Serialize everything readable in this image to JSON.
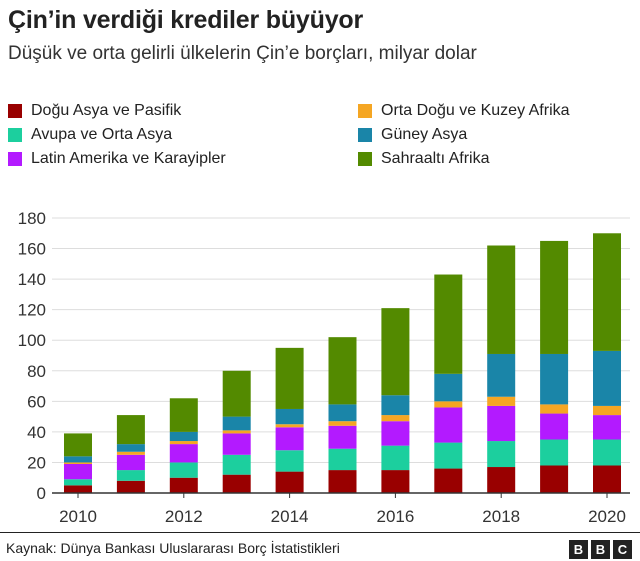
{
  "title": "Çin’in verdiği krediler büyüyor",
  "subtitle": "Düşük ve orta gelirli ülkelerin Çin’e borçları, milyar dolar",
  "source": "Kaynak: Dünya Bankası Uluslararası Borç İstatistikleri",
  "logo": [
    "B",
    "B",
    "C"
  ],
  "chart_data": {
    "type": "bar",
    "stacked": true,
    "categories": [
      "2010",
      "2011",
      "2012",
      "2013",
      "2014",
      "2015",
      "2016",
      "2017",
      "2018",
      "2019",
      "2020"
    ],
    "x_tick_labels": [
      "2010",
      "2012",
      "2014",
      "2016",
      "2018",
      "2020"
    ],
    "ylim": [
      0,
      180
    ],
    "y_ticks": [
      0,
      20,
      40,
      60,
      80,
      100,
      120,
      140,
      160,
      180
    ],
    "grid": true,
    "legend_position": "top",
    "series": [
      {
        "name": "Doğu Asya ve Pasifik",
        "color": "#990000",
        "values": [
          5,
          8,
          10,
          12,
          14,
          15,
          15,
          16,
          17,
          18,
          18
        ]
      },
      {
        "name": "Avupa ve Orta Asya",
        "color": "#1ccf9e",
        "values": [
          4,
          7,
          10,
          13,
          14,
          14,
          16,
          17,
          17,
          17,
          17
        ]
      },
      {
        "name": "Latin Amerika ve Karayipler",
        "color": "#b31aff",
        "values": [
          10,
          10,
          12,
          14,
          15,
          15,
          16,
          23,
          23,
          17,
          16
        ]
      },
      {
        "name": "Orta Doğu ve Kuzey Afrika",
        "color": "#f5a623",
        "values": [
          1,
          2,
          2,
          2,
          2,
          3,
          4,
          4,
          6,
          6,
          6
        ]
      },
      {
        "name": "Güney Asya",
        "color": "#1a85a8",
        "values": [
          4,
          5,
          6,
          9,
          10,
          11,
          13,
          18,
          28,
          33,
          36
        ]
      },
      {
        "name": "Sahraaltı Afrika",
        "color": "#538a00",
        "values": [
          15,
          19,
          22,
          30,
          40,
          44,
          57,
          65,
          71,
          74,
          77
        ]
      }
    ]
  }
}
